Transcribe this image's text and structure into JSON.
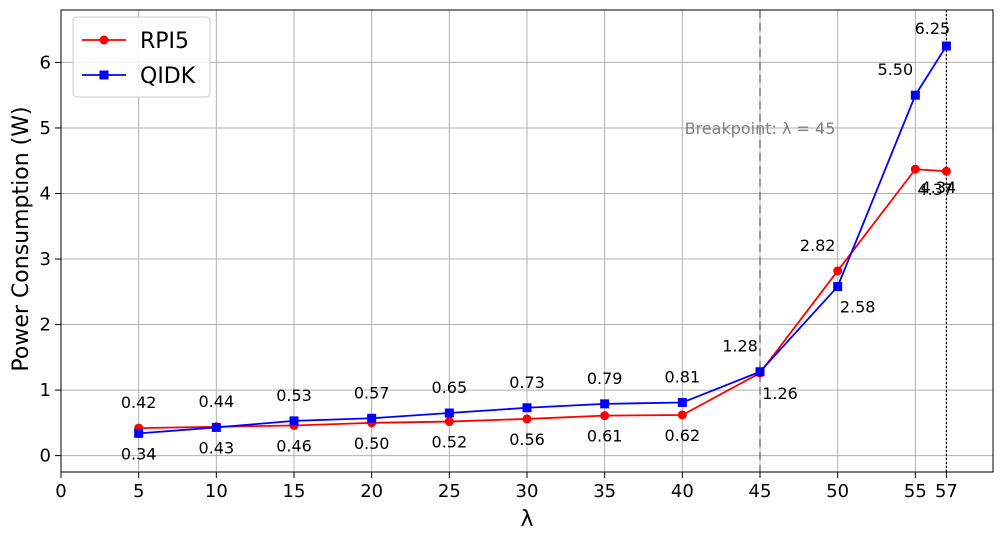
{
  "chart_data": {
    "type": "line",
    "title": "",
    "xlabel": "λ",
    "ylabel": "Power Consumption (W)",
    "xlim": [
      0,
      60
    ],
    "ylim": [
      -0.25,
      6.8
    ],
    "grid": true,
    "legend_position": "top-left",
    "x_ticks": [
      0,
      5,
      10,
      15,
      20,
      25,
      30,
      35,
      40,
      45,
      50,
      55,
      57
    ],
    "highlight_tick": {
      "value": 57,
      "color": "#ff7f0e"
    },
    "y_ticks": [
      0,
      1,
      2,
      3,
      4,
      5,
      6
    ],
    "x": [
      5,
      10,
      15,
      20,
      25,
      30,
      35,
      40,
      45,
      50,
      55,
      57
    ],
    "series": [
      {
        "name": "RPI5",
        "color": "#ff0000",
        "marker": "circle",
        "values": [
          0.42,
          0.44,
          0.46,
          0.5,
          0.52,
          0.56,
          0.61,
          0.62,
          1.26,
          2.82,
          4.37,
          4.34
        ],
        "labels": [
          "0.42",
          "0.44",
          "0.46",
          "0.50",
          "0.52",
          "0.56",
          "0.61",
          "0.62",
          "1.26",
          "2.82",
          "4.37",
          "4.34"
        ]
      },
      {
        "name": "QIDK",
        "color": "#0000ff",
        "marker": "square",
        "values": [
          0.34,
          0.43,
          0.53,
          0.57,
          0.65,
          0.73,
          0.79,
          0.81,
          1.28,
          2.58,
          5.5,
          6.25
        ],
        "labels": [
          "0.34",
          "0.43",
          "0.53",
          "0.57",
          "0.65",
          "0.73",
          "0.79",
          "0.81",
          "1.28",
          "2.58",
          "5.50",
          "6.25"
        ]
      }
    ],
    "vlines": [
      {
        "x": 45,
        "style": "dashed",
        "color": "#808080"
      },
      {
        "x": 57,
        "style": "dotted",
        "color": "#000000"
      }
    ],
    "annotations": [
      {
        "text": "Breakpoint: λ = 45",
        "x": 45,
        "y": 5.0,
        "color": "#808080"
      }
    ]
  }
}
